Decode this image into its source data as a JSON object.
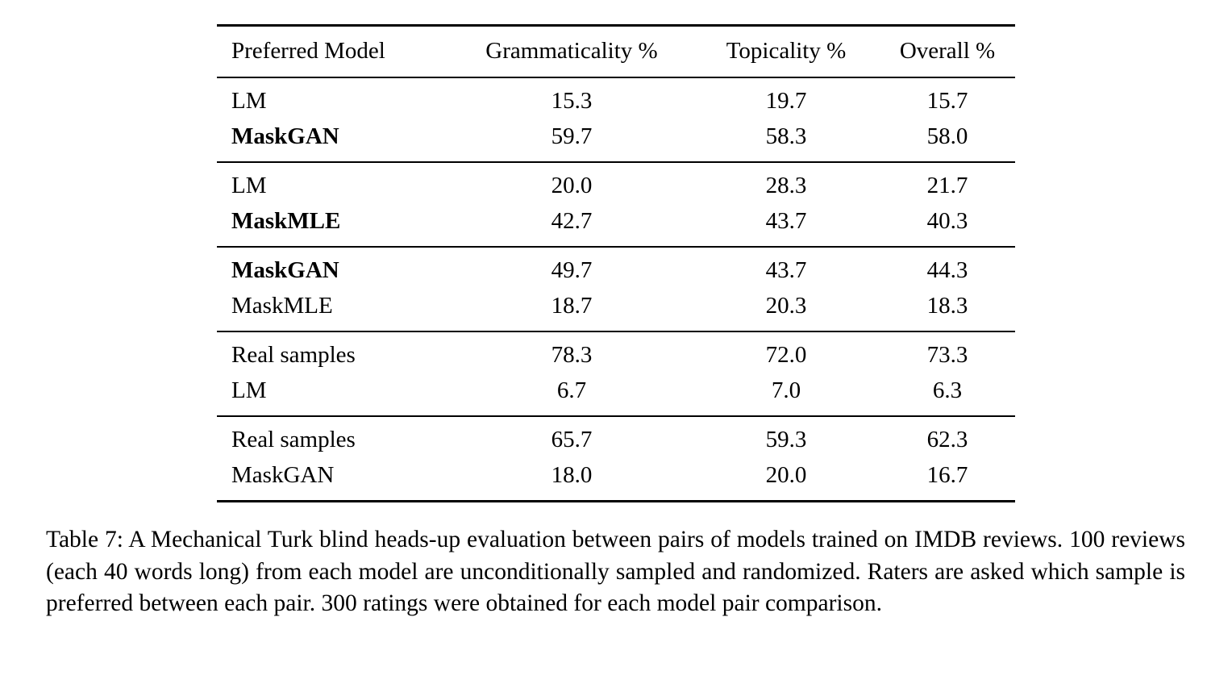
{
  "table": {
    "headers": [
      "Preferred Model",
      "Grammaticality %",
      "Topicality %",
      "Overall %"
    ],
    "groups": [
      {
        "rows": [
          {
            "model": "LM",
            "bold": false,
            "values": [
              "15.3",
              "19.7",
              "15.7"
            ]
          },
          {
            "model": "MaskGAN",
            "bold": true,
            "values": [
              "59.7",
              "58.3",
              "58.0"
            ]
          }
        ]
      },
      {
        "rows": [
          {
            "model": "LM",
            "bold": false,
            "values": [
              "20.0",
              "28.3",
              "21.7"
            ]
          },
          {
            "model": "MaskMLE",
            "bold": true,
            "values": [
              "42.7",
              "43.7",
              "40.3"
            ]
          }
        ]
      },
      {
        "rows": [
          {
            "model": "MaskGAN",
            "bold": true,
            "values": [
              "49.7",
              "43.7",
              "44.3"
            ]
          },
          {
            "model": "MaskMLE",
            "bold": false,
            "values": [
              "18.7",
              "20.3",
              "18.3"
            ]
          }
        ]
      },
      {
        "rows": [
          {
            "model": "Real samples",
            "bold": false,
            "values": [
              "78.3",
              "72.0",
              "73.3"
            ]
          },
          {
            "model": "LM",
            "bold": false,
            "values": [
              "6.7",
              "7.0",
              "6.3"
            ]
          }
        ]
      },
      {
        "rows": [
          {
            "model": "Real samples",
            "bold": false,
            "values": [
              "65.7",
              "59.3",
              "62.3"
            ]
          },
          {
            "model": "MaskGAN",
            "bold": false,
            "values": [
              "18.0",
              "20.0",
              "16.7"
            ]
          }
        ]
      }
    ]
  },
  "caption": {
    "text": "Table 7: A Mechanical Turk blind heads-up evaluation between pairs of models trained on IMDB reviews. 100 reviews (each 40 words long) from each model are unconditionally sampled and randomized. Raters are asked which sample is preferred between each pair. 300 ratings were obtained for each model pair comparison."
  }
}
